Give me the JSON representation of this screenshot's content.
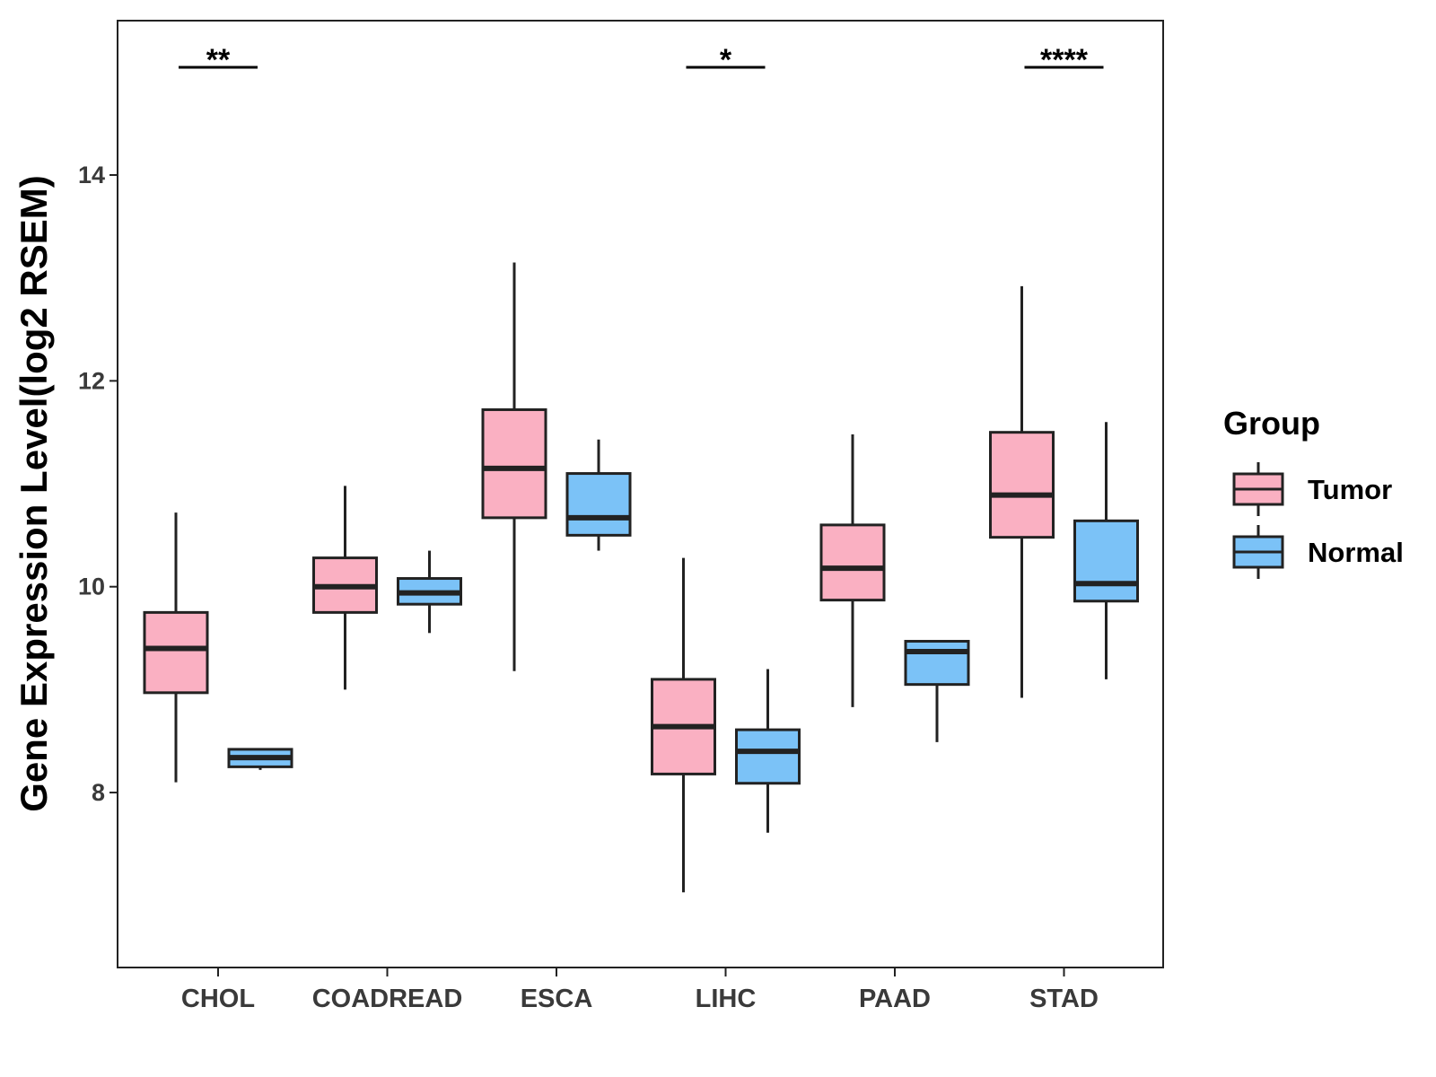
{
  "chart_data": {
    "type": "boxplot",
    "title": "",
    "xlabel": "",
    "ylabel": "Gene Expression Level(log2 RSEM)",
    "ylim": [
      6.3,
      15.5
    ],
    "yticks": [
      8,
      10,
      12,
      14
    ],
    "categories": [
      "CHOL",
      "COADREAD",
      "ESCA",
      "LIHC",
      "PAAD",
      "STAD"
    ],
    "legend": {
      "title": "Group",
      "position": "right"
    },
    "series": [
      {
        "name": "Tumor",
        "color": "#FAB0C2",
        "boxes": [
          {
            "whisker_low": 8.1,
            "q1": 8.97,
            "median": 9.4,
            "q3": 9.75,
            "whisker_high": 10.72
          },
          {
            "whisker_low": 9.0,
            "q1": 9.75,
            "median": 10.0,
            "q3": 10.28,
            "whisker_high": 10.98
          },
          {
            "whisker_low": 9.18,
            "q1": 10.67,
            "median": 11.15,
            "q3": 11.72,
            "whisker_high": 13.15
          },
          {
            "whisker_low": 7.03,
            "q1": 8.18,
            "median": 8.64,
            "q3": 9.1,
            "whisker_high": 10.28
          },
          {
            "whisker_low": 8.83,
            "q1": 9.87,
            "median": 10.18,
            "q3": 10.6,
            "whisker_high": 11.48
          },
          {
            "whisker_low": 8.92,
            "q1": 10.48,
            "median": 10.89,
            "q3": 11.5,
            "whisker_high": 12.92
          }
        ]
      },
      {
        "name": "Normal",
        "color": "#7BC2F7",
        "boxes": [
          {
            "whisker_low": 8.22,
            "q1": 8.25,
            "median": 8.34,
            "q3": 8.42,
            "whisker_high": 8.42
          },
          {
            "whisker_low": 9.55,
            "q1": 9.83,
            "median": 9.94,
            "q3": 10.08,
            "whisker_high": 10.35
          },
          {
            "whisker_low": 10.35,
            "q1": 10.5,
            "median": 10.67,
            "q3": 11.1,
            "whisker_high": 11.43
          },
          {
            "whisker_low": 7.61,
            "q1": 8.09,
            "median": 8.4,
            "q3": 8.61,
            "whisker_high": 9.2
          },
          {
            "whisker_low": 8.49,
            "q1": 9.05,
            "median": 9.37,
            "q3": 9.47,
            "whisker_high": 9.47
          },
          {
            "whisker_low": 9.1,
            "q1": 9.86,
            "median": 10.03,
            "q3": 10.64,
            "whisker_high": 11.6
          }
        ]
      }
    ],
    "annotations": [
      {
        "category": "CHOL",
        "label": "**"
      },
      {
        "category": "LIHC",
        "label": "*"
      },
      {
        "category": "STAD",
        "label": "****"
      }
    ]
  }
}
